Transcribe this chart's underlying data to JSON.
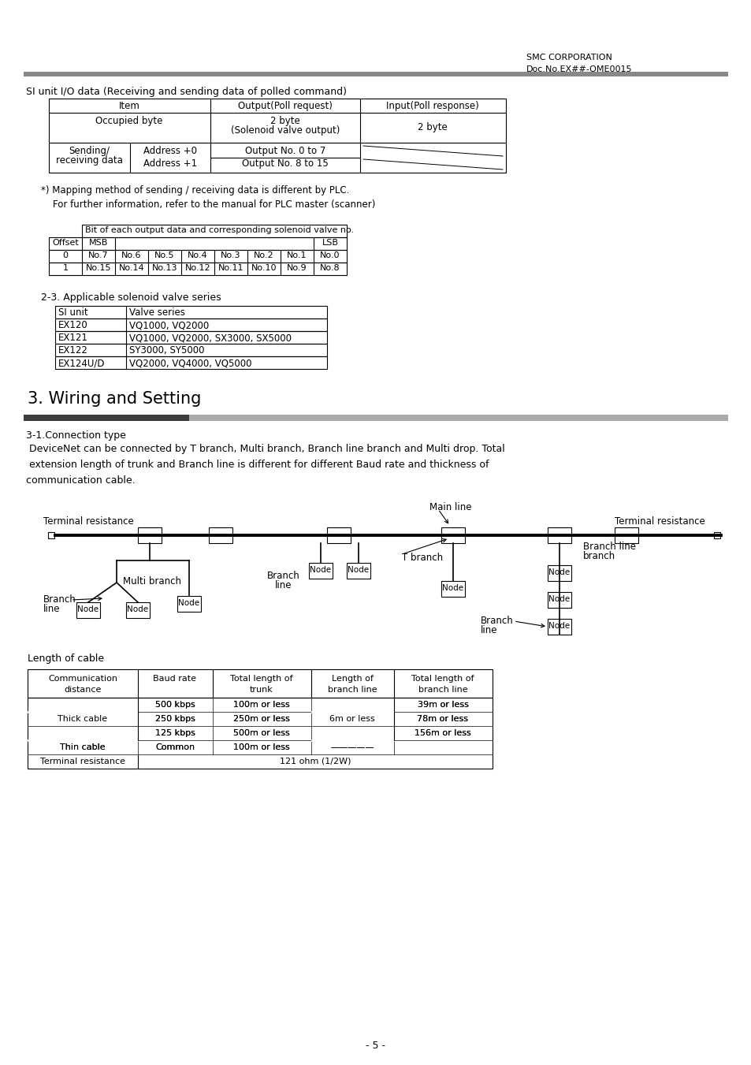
{
  "bg_color": "#ffffff",
  "header_right_line1": "SMC CORPORATION",
  "header_right_line2": "Doc.No.EX##-OME0015",
  "section_title": "3. Wiring and Setting",
  "page_number": "- 5 -",
  "top_label": "SI unit I/O data (Receiving and sending data of polled command)",
  "note1": "*) Mapping method of sending / receiving data is different by PLC.",
  "note2": "   For further information, refer to the manual for PLC master (scanner)",
  "table2_title": "Bit of each output data and corresponding solenoid valve no.",
  "table2_row0": [
    "0",
    "No.7",
    "No.6",
    "No.5",
    "No.4",
    "No.3",
    "No.2",
    "No.1",
    "No.0"
  ],
  "table2_row1": [
    "1",
    "No.15",
    "No.14",
    "No.13",
    "No.12",
    "No.11",
    "No.10",
    "No.9",
    "No.8"
  ],
  "section23_title": "2-3. Applicable solenoid valve series",
  "table3_headers": [
    "SI unit",
    "Valve series"
  ],
  "table3_rows": [
    [
      "EX120",
      "VQ1000, VQ2000"
    ],
    [
      "EX121",
      "VQ1000, VQ2000, SX3000, SX5000"
    ],
    [
      "EX122",
      "SY3000, SY5000"
    ],
    [
      "EX124U/D",
      "VQ2000, VQ4000, VQ5000"
    ]
  ],
  "section31_title": "3-1.Connection type",
  "body_lines": [
    " DeviceNet can be connected by T branch, Multi branch, Branch line branch and Multi drop. Total",
    " extension length of trunk and Branch line is different for different Baud rate and thickness of",
    "communication cable."
  ],
  "length_label": "Length of cable",
  "cable_table_headers": [
    "Communication\ndistance",
    "Baud rate",
    "Total length of\ntrunk",
    "Length of\nbranch line",
    "Total length of\nbranch line"
  ],
  "cable_col_w": [
    140,
    95,
    125,
    105,
    125
  ]
}
